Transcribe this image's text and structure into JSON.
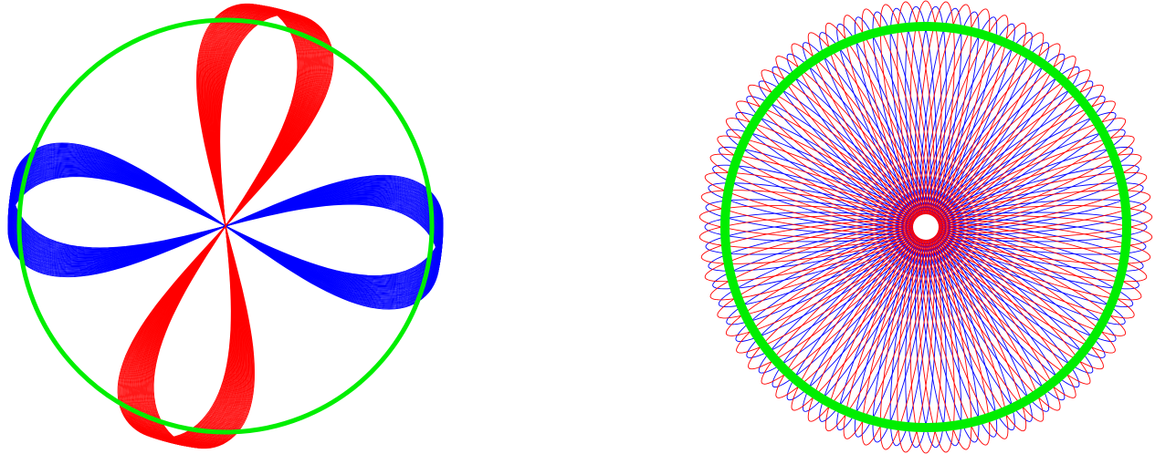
{
  "colors": {
    "background": "#ffffff",
    "ring": "#00ee00",
    "series_a": "#0000ff",
    "series_b": "#ff0000"
  },
  "figures": [
    {
      "name": "left-pattern",
      "style": "twisted-loop-bands",
      "loops_per_color": 40
    },
    {
      "name": "right-pattern",
      "style": "rosette",
      "loops_per_color": 70
    }
  ]
}
